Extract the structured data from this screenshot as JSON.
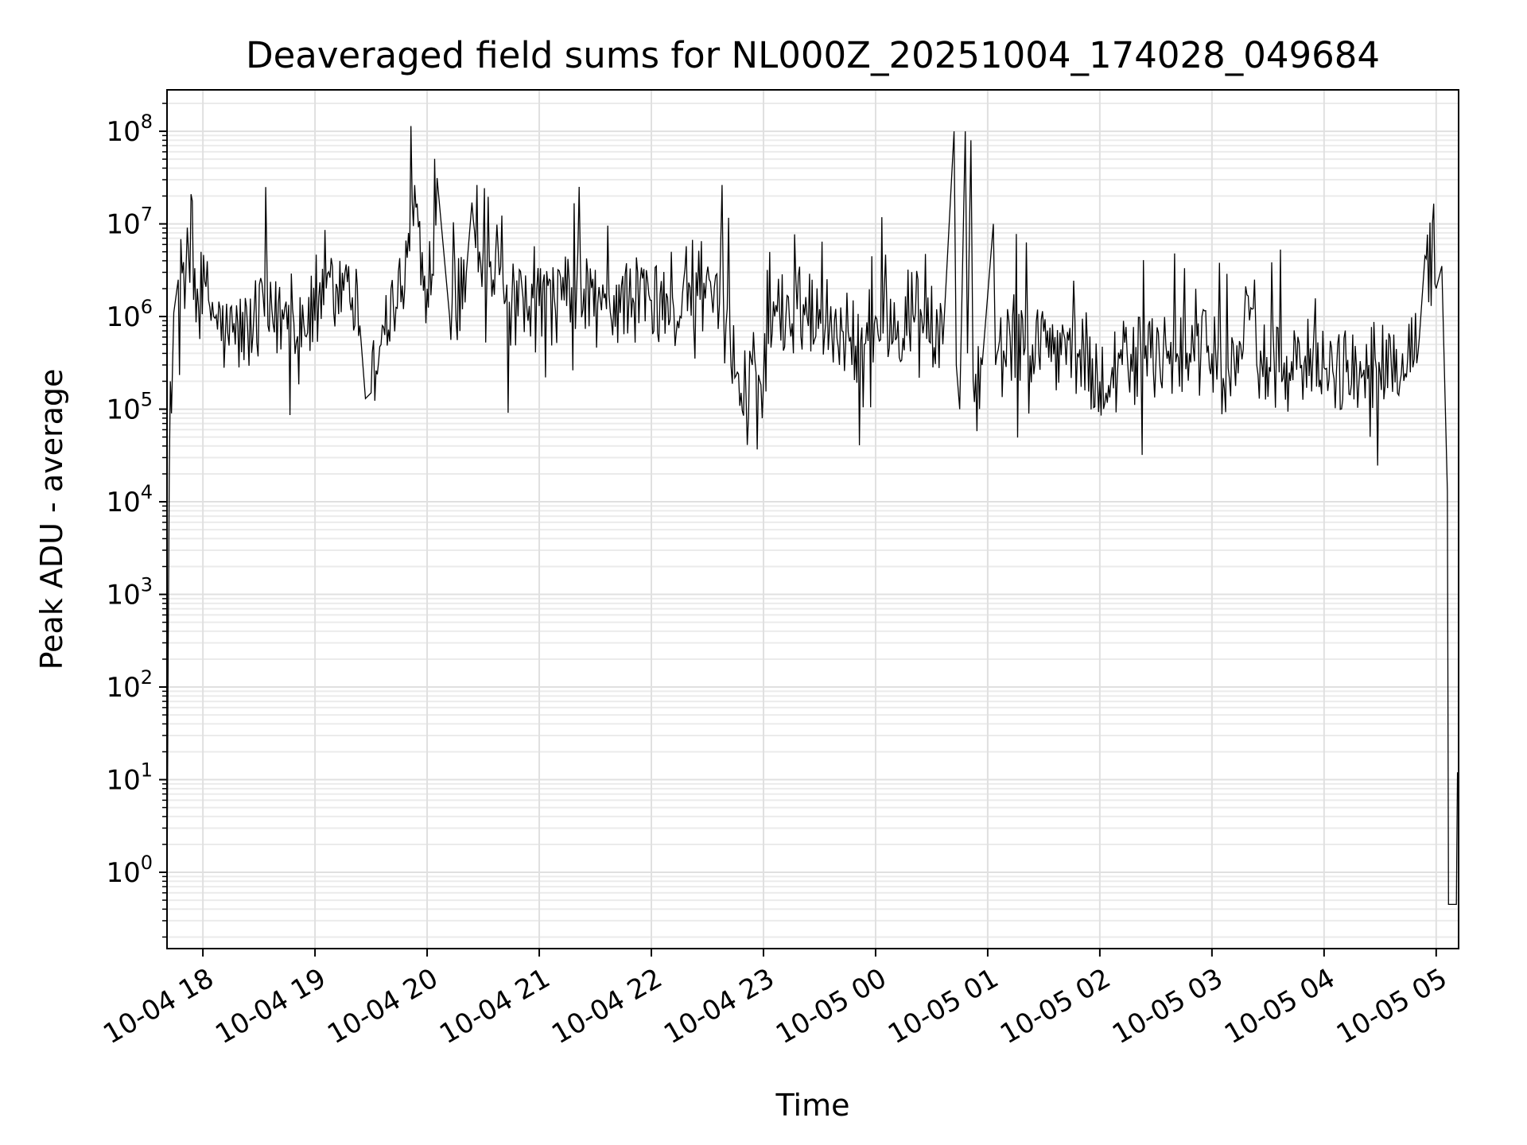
{
  "chart_data": {
    "type": "line",
    "title": "Deaveraged field sums for NL000Z_20251004_174028_049684",
    "xlabel": "Time",
    "ylabel": "Peak ADU - average",
    "yscale": "log",
    "ylim": [
      0.15,
      280000000
    ],
    "xlim_hours": [
      17.68,
      29.2
    ],
    "grid": true,
    "grid_minor": true,
    "line_color": "#000000",
    "x_ticks": [
      {
        "hour": 18,
        "label": "10-04 18"
      },
      {
        "hour": 19,
        "label": "10-04 19"
      },
      {
        "hour": 20,
        "label": "10-04 20"
      },
      {
        "hour": 21,
        "label": "10-04 21"
      },
      {
        "hour": 22,
        "label": "10-04 22"
      },
      {
        "hour": 23,
        "label": "10-04 23"
      },
      {
        "hour": 24,
        "label": "10-05 00"
      },
      {
        "hour": 25,
        "label": "10-05 01"
      },
      {
        "hour": 26,
        "label": "10-05 02"
      },
      {
        "hour": 27,
        "label": "10-05 03"
      },
      {
        "hour": 28,
        "label": "10-05 04"
      },
      {
        "hour": 29,
        "label": "10-05 05"
      }
    ],
    "y_ticks": [
      {
        "exp": 0,
        "base": "10",
        "power": "0"
      },
      {
        "exp": 1,
        "base": "10",
        "power": "1"
      },
      {
        "exp": 2,
        "base": "10",
        "power": "2"
      },
      {
        "exp": 3,
        "base": "10",
        "power": "3"
      },
      {
        "exp": 4,
        "base": "10",
        "power": "4"
      },
      {
        "exp": 5,
        "base": "10",
        "power": "5"
      },
      {
        "exp": 6,
        "base": "10",
        "power": "6"
      },
      {
        "exp": 7,
        "base": "10",
        "power": "7"
      },
      {
        "exp": 8,
        "base": "10",
        "power": "8"
      }
    ],
    "series": [
      {
        "name": "peak ADU - average",
        "points": [
          [
            17.68,
            0.45
          ],
          [
            17.69,
            200
          ],
          [
            17.7,
            18000
          ],
          [
            17.71,
            200000
          ],
          [
            17.72,
            90000
          ],
          [
            17.74,
            1100000
          ],
          [
            17.78,
            2500000
          ],
          [
            17.85,
            3500000
          ],
          [
            17.95,
            2000000
          ],
          [
            18.05,
            1500000
          ],
          [
            18.2,
            600000
          ],
          [
            18.4,
            700000
          ],
          [
            18.55,
            1000000
          ],
          [
            18.56,
            25000000
          ],
          [
            18.58,
            800000
          ],
          [
            18.8,
            1200000
          ],
          [
            19.0,
            900000
          ],
          [
            19.2,
            2000000
          ],
          [
            19.3,
            3500000
          ],
          [
            19.4,
            800000
          ],
          [
            19.45,
            130000
          ],
          [
            19.5,
            150000
          ],
          [
            19.6,
            800000
          ],
          [
            19.8,
            2000000
          ],
          [
            19.9,
            15000000
          ],
          [
            20.0,
            2000000
          ],
          [
            20.1,
            22000000
          ],
          [
            20.2,
            1000000
          ],
          [
            20.35,
            3000000
          ],
          [
            20.4,
            17000000
          ],
          [
            20.5,
            5000000
          ],
          [
            20.7,
            1500000
          ],
          [
            20.9,
            900000
          ],
          [
            21.0,
            1300000
          ],
          [
            21.2,
            1500000
          ],
          [
            21.4,
            2000000
          ],
          [
            21.6,
            1200000
          ],
          [
            21.8,
            1500000
          ],
          [
            22.0,
            1500000
          ],
          [
            22.2,
            1200000
          ],
          [
            22.4,
            3000000
          ],
          [
            22.55,
            1100000
          ],
          [
            22.7,
            800000
          ],
          [
            22.8,
            150000
          ],
          [
            22.9,
            300000
          ],
          [
            23.0,
            200000
          ],
          [
            23.1,
            1000000
          ],
          [
            23.3,
            1200000
          ],
          [
            23.5,
            1200000
          ],
          [
            23.7,
            700000
          ],
          [
            23.9,
            500000
          ],
          [
            24.0,
            1000000
          ],
          [
            24.2,
            900000
          ],
          [
            24.4,
            1200000
          ],
          [
            24.6,
            500000
          ],
          [
            24.7,
            100000000
          ],
          [
            24.72,
            300000
          ],
          [
            24.75,
            100000
          ],
          [
            24.8,
            100000000
          ],
          [
            24.82,
            400000
          ],
          [
            24.85,
            80000000
          ],
          [
            24.87,
            200000
          ],
          [
            24.95,
            300000
          ],
          [
            25.05,
            10000000
          ],
          [
            25.07,
            300000
          ],
          [
            25.2,
            600000
          ],
          [
            25.4,
            500000
          ],
          [
            25.6,
            600000
          ],
          [
            25.8,
            400000
          ],
          [
            26.0,
            200000
          ],
          [
            26.2,
            300000
          ],
          [
            26.4,
            350000
          ],
          [
            26.6,
            350000
          ],
          [
            26.8,
            400000
          ],
          [
            27.0,
            400000
          ],
          [
            27.2,
            300000
          ],
          [
            27.38,
            2500000
          ],
          [
            27.4,
            300000
          ],
          [
            27.6,
            250000
          ],
          [
            27.8,
            300000
          ],
          [
            28.0,
            280000
          ],
          [
            28.2,
            250000
          ],
          [
            28.4,
            300000
          ],
          [
            28.6,
            300000
          ],
          [
            28.7,
            400000
          ],
          [
            28.85,
            600000
          ],
          [
            28.9,
            4500000
          ],
          [
            29.0,
            2000000
          ],
          [
            29.05,
            3500000
          ],
          [
            29.1,
            13000
          ],
          [
            29.11,
            0.45
          ],
          [
            29.15,
            0.45
          ],
          [
            29.18,
            0.45
          ],
          [
            29.19,
            12
          ]
        ]
      }
    ]
  }
}
